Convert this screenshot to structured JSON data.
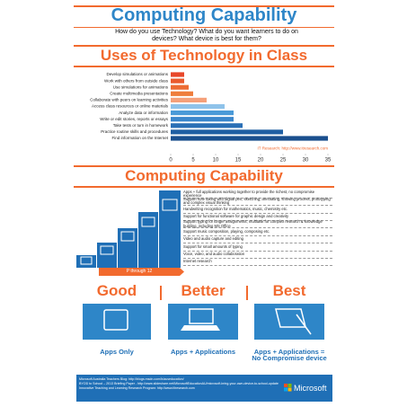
{
  "header": {
    "title": "Computing Capability",
    "subtitle": "How do you use Technology? What do you want learners to do on devices? What device is best for them?"
  },
  "chart_data": {
    "type": "bar",
    "orientation": "horizontal",
    "title": "Uses of Technology in Class",
    "categories": [
      "Develop simulations or animations",
      "Work with others from outside class",
      "Use simulations for animations",
      "Create multimedia presentations",
      "Collaborate with peers on learning activities",
      "Access class resources or online materials",
      "Analyze data or information",
      "Write or edit stories, reports or essays",
      "Take tests or turn in homework",
      "Practice routine skills and procedures",
      "Find information on the Internet"
    ],
    "values": [
      3,
      3,
      4,
      5,
      8,
      12,
      14,
      14,
      16,
      25,
      35
    ],
    "colors": [
      "#e8472a",
      "#ea5a2e",
      "#ed6c34",
      "#ef7d3c",
      "#f5a07a",
      "#8fc3ea",
      "#4a9ad8",
      "#3a86cc",
      "#2a6fb6",
      "#1f5fa3",
      "#1a4f8e"
    ],
    "xlim": [
      0,
      35
    ],
    "xticks": [
      0,
      5,
      10,
      15,
      20,
      25,
      30,
      35
    ],
    "annotation": "IT Research: http://www.itresearch.com"
  },
  "capability": {
    "title": "Computing Capability",
    "items": [
      "Apps + full applications working together to provide the richest, no compromise experience",
      "Support note taking with digital pen, sketching, annotating, showing process, prototyping and complex visual thinking",
      "Handwriting recognition for mathematics, music, chemistry etc.",
      "Support for functional software for graphic design and creativity",
      "Support typing for longer assignments, multitask for complex research & knowledge building, including MS Office",
      "Support music composition, playing, composing etc.",
      "Video and audio capture and editing",
      "Support for small amounts of typing",
      "Voice, video, and audio collaboration",
      "Internet research"
    ],
    "arrow": "P through 12"
  },
  "tiers": [
    {
      "name": "Good",
      "caption": "Apps Only"
    },
    {
      "name": "Better",
      "caption": "Apps + Applications"
    },
    {
      "name": "Best",
      "caption": "Apps + Applications = No Compromise device"
    }
  ],
  "footer": {
    "lines": [
      "Microsoft Australia Teachers Blog: http://blogs.msdn.com/b/auseducation/",
      "BYOD to School – 2013 Briefing Paper - http://www.slideshare.net/MicrosoftEducationAU/microsoft-bring-your-own-device-to-school-update",
      "Innovative Teaching and Learning Research Program: http://www.itlresearch.com"
    ],
    "logo": "Microsoft"
  }
}
